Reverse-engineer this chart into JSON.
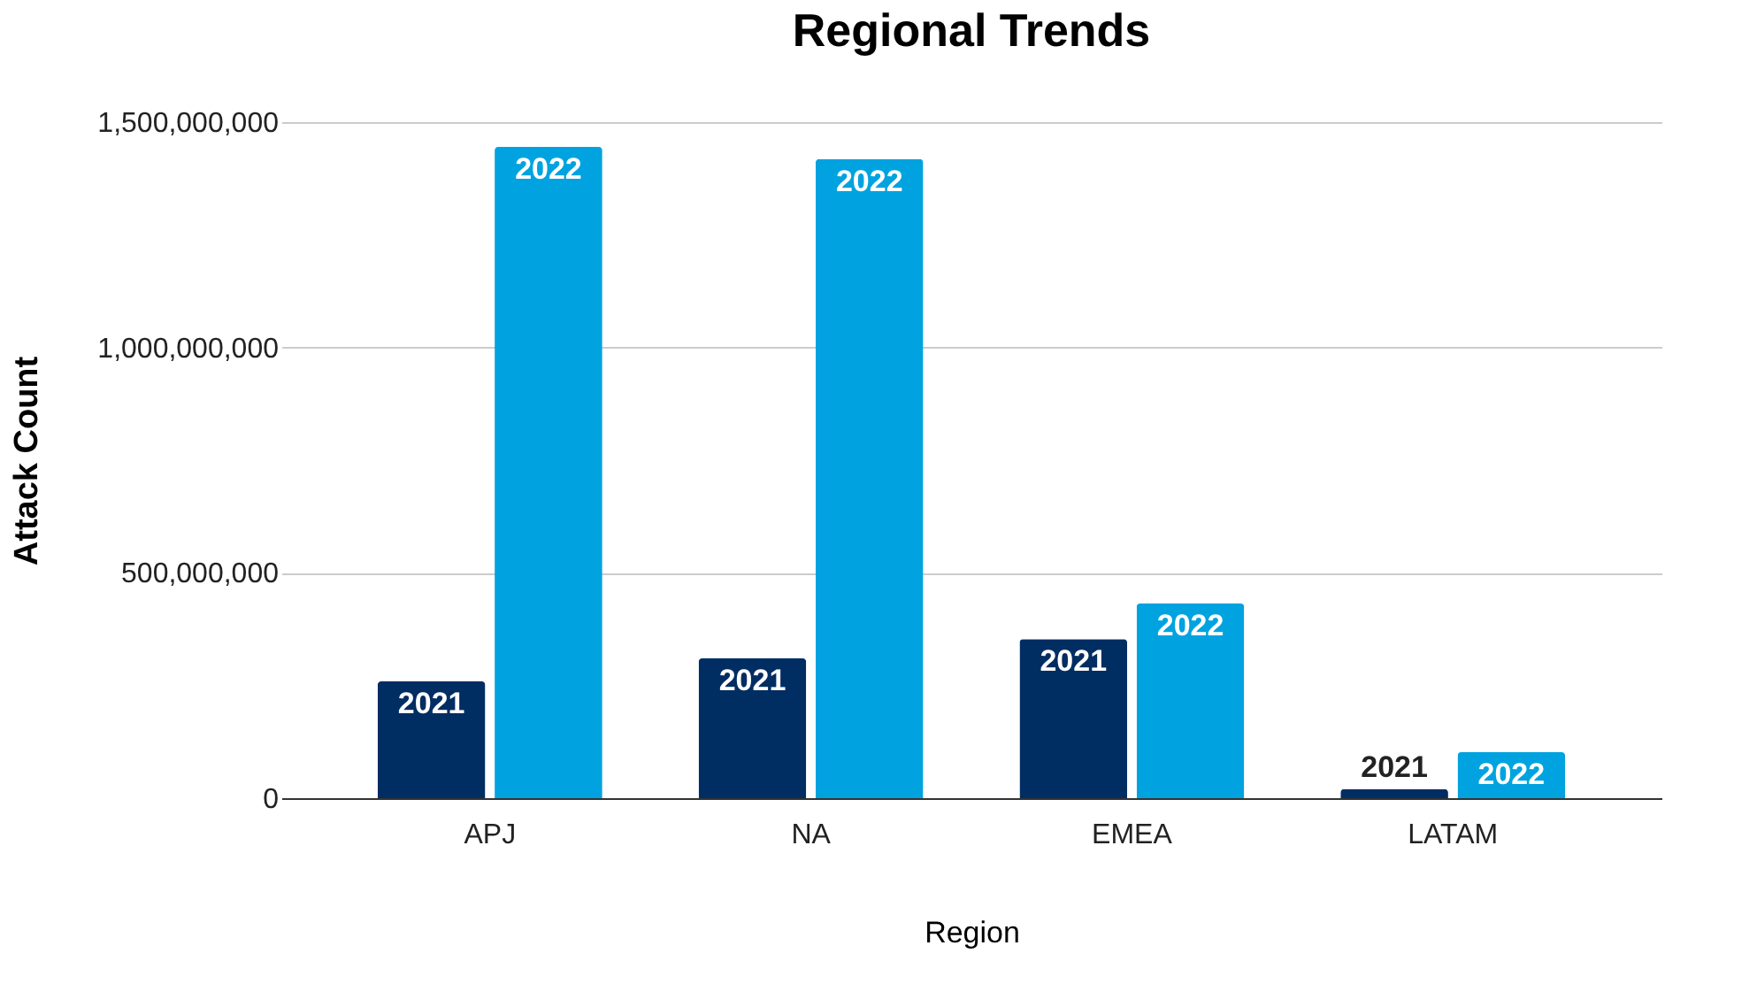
{
  "chart_data": {
    "type": "bar",
    "title": "Regional Trends",
    "xlabel": "Region",
    "ylabel": "Attack Count",
    "categories": [
      "APJ",
      "NA",
      "EMEA",
      "LATAM"
    ],
    "series": [
      {
        "name": "2021",
        "color": "#002d62",
        "values": [
          259000000,
          310000000,
          353000000,
          20000000
        ]
      },
      {
        "name": "2022",
        "color": "#00a3e0",
        "values": [
          1445000000,
          1418000000,
          432000000,
          102000000
        ]
      }
    ],
    "ylim": [
      0,
      1500000000
    ],
    "yticks": [
      0,
      {
        "value": 500000000,
        "label": "500,000,000"
      },
      {
        "value": 1000000000,
        "label": "1,000,000,000"
      },
      {
        "value": 1500000000,
        "label": "1,500,000,000"
      }
    ],
    "grid": "y",
    "legend": false
  }
}
